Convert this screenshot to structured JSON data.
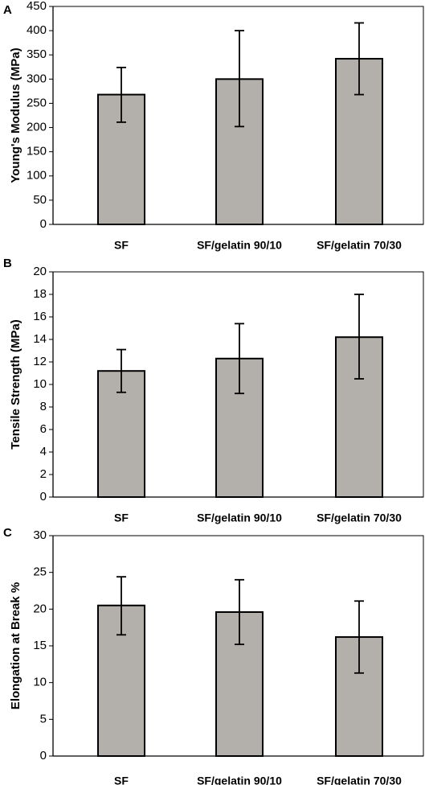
{
  "bar_color": "#b3afab",
  "chart_data": [
    {
      "type": "bar",
      "panel": "A",
      "title": "",
      "xlabel": "",
      "ylabel": "Young's  Modulus (MPa)",
      "ylim": [
        0,
        450
      ],
      "yticks": [
        0,
        50,
        100,
        150,
        200,
        250,
        300,
        350,
        400,
        450
      ],
      "categories": [
        "SF",
        "SF/gelatin 90/10",
        "SF/gelatin 70/30"
      ],
      "values": [
        268,
        300,
        342
      ],
      "error_low": [
        211,
        202,
        268
      ],
      "error_high": [
        324,
        400,
        416
      ]
    },
    {
      "type": "bar",
      "panel": "B",
      "title": "",
      "xlabel": "",
      "ylabel": "Tensile Strength (MPa)",
      "ylim": [
        0,
        20
      ],
      "yticks": [
        0,
        2,
        4,
        6,
        8,
        10,
        12,
        14,
        16,
        18,
        20
      ],
      "categories": [
        "SF",
        "SF/gelatin 90/10",
        "SF/gelatin 70/30"
      ],
      "values": [
        11.2,
        12.3,
        14.2
      ],
      "error_low": [
        9.3,
        9.2,
        10.5
      ],
      "error_high": [
        13.1,
        15.4,
        18.0
      ]
    },
    {
      "type": "bar",
      "panel": "C",
      "title": "",
      "xlabel": "",
      "ylabel": "Elongation at Break %",
      "ylim": [
        0,
        30
      ],
      "yticks": [
        0,
        5,
        10,
        15,
        20,
        25,
        30
      ],
      "categories": [
        "SF",
        "SF/gelatin 90/10",
        "SF/gelatin 70/30"
      ],
      "values": [
        20.5,
        19.6,
        16.2
      ],
      "error_low": [
        16.5,
        15.2,
        11.3
      ],
      "error_high": [
        24.4,
        24.0,
        21.1
      ]
    }
  ]
}
